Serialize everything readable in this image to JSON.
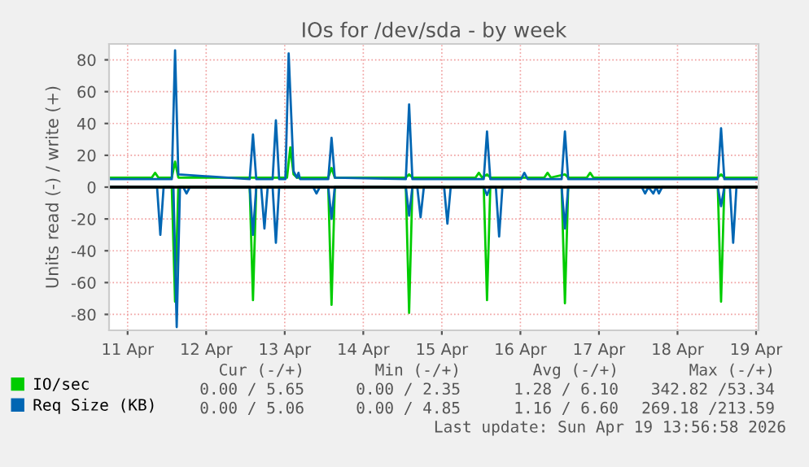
{
  "chart_data": {
    "type": "line",
    "title": "IOs for /dev/sda - by week",
    "ylabel": "Units read (-) / write (+)",
    "xlim": [
      "2026-04-11T06:20",
      "2026-04-19T12:45"
    ],
    "xticks": [
      {
        "value": "2026-04-11T12:00",
        "label": "11 Apr"
      },
      {
        "value": "2026-04-12T12:00",
        "label": "12 Apr"
      },
      {
        "value": "2026-04-13T12:00",
        "label": "13 Apr"
      },
      {
        "value": "2026-04-14T12:00",
        "label": "14 Apr"
      },
      {
        "value": "2026-04-15T12:00",
        "label": "15 Apr"
      },
      {
        "value": "2026-04-16T12:00",
        "label": "16 Apr"
      },
      {
        "value": "2026-04-17T12:00",
        "label": "17 Apr"
      },
      {
        "value": "2026-04-18T12:00",
        "label": "18 Apr"
      },
      {
        "value": "2026-04-19T12:00",
        "label": "19 Apr"
      }
    ],
    "ylim": [
      -90,
      90
    ],
    "yticks": [
      -80,
      -60,
      -40,
      -20,
      0,
      20,
      40,
      60,
      80
    ],
    "grid": true,
    "legend": "bottom",
    "ref_lines": [
      {
        "axis": "y",
        "value": 0,
        "color": "#000000"
      }
    ],
    "series": [
      {
        "color": "#00cc00",
        "x": [
          "2026-04-11T06:30",
          "2026-04-12T01:30",
          "2026-04-12T02:30",
          "2026-04-12T03:30",
          "2026-04-13T01:18",
          "2026-04-13T02:18",
          "2026-04-13T03:18",
          "2026-04-14T01:18",
          "2026-04-14T02:18",
          "2026-04-14T03:18",
          "2026-04-15T01:00",
          "2026-04-15T02:00",
          "2026-04-15T03:00",
          "2026-04-16T00:48",
          "2026-04-16T01:48",
          "2026-04-16T02:48",
          "2026-04-17T00:36",
          "2026-04-17T01:36",
          "2026-04-17T02:36",
          "2026-04-19T00:18",
          "2026-04-19T01:18",
          "2026-04-19T02:18",
          "2026-04-19T12:30"
        ],
        "values": [
          0,
          0,
          -72,
          0,
          0,
          -71,
          0,
          0,
          -74,
          0,
          0,
          -79,
          0,
          0,
          -71,
          0,
          0,
          -73,
          0,
          0,
          -72,
          0,
          0
        ]
      },
      {
        "color": "#0066b3",
        "x": [
          "2026-04-11T06:30",
          "2026-04-11T21:00",
          "2026-04-11T22:00",
          "2026-04-11T23:00",
          "2026-04-12T02:00",
          "2026-04-12T03:00",
          "2026-04-12T04:00",
          "2026-04-12T05:00",
          "2026-04-12T06:00",
          "2026-04-12T07:00",
          "2026-04-13T01:18",
          "2026-04-13T02:18",
          "2026-04-13T03:18",
          "2026-04-13T04:48",
          "2026-04-13T05:48",
          "2026-04-13T06:48",
          "2026-04-13T08:18",
          "2026-04-13T09:18",
          "2026-04-13T10:18",
          "2026-04-13T20:42",
          "2026-04-13T21:42",
          "2026-04-13T22:42",
          "2026-04-14T01:18",
          "2026-04-14T02:18",
          "2026-04-14T03:18",
          "2026-04-15T01:00",
          "2026-04-15T02:00",
          "2026-04-15T03:00",
          "2026-04-15T04:30",
          "2026-04-15T05:30",
          "2026-04-15T06:30",
          "2026-04-15T12:42",
          "2026-04-15T13:42",
          "2026-04-15T14:42",
          "2026-04-16T00:48",
          "2026-04-16T01:48",
          "2026-04-16T02:48",
          "2026-04-16T04:30",
          "2026-04-16T05:30",
          "2026-04-16T06:30",
          "2026-04-17T00:36",
          "2026-04-17T01:36",
          "2026-04-17T02:36",
          "2026-04-18T01:06",
          "2026-04-18T02:06",
          "2026-04-18T03:06",
          "2026-04-18T04:36",
          "2026-04-18T05:30",
          "2026-04-18T06:18",
          "2026-04-18T07:18",
          "2026-04-19T00:18",
          "2026-04-19T01:18",
          "2026-04-19T02:18",
          "2026-04-19T04:00",
          "2026-04-19T05:00",
          "2026-04-19T06:00",
          "2026-04-19T12:30"
        ],
        "values": [
          0,
          0,
          -30,
          0,
          0,
          -88,
          0,
          0,
          -4,
          0,
          0,
          -30,
          0,
          0,
          -26,
          0,
          0,
          -35,
          0,
          0,
          -4,
          0,
          0,
          -20,
          0,
          0,
          -18,
          0,
          0,
          -19,
          0,
          0,
          -23,
          0,
          0,
          -5,
          0,
          0,
          -31,
          0,
          0,
          -26,
          0,
          0,
          -4,
          0,
          -4,
          0,
          -4,
          0,
          0,
          -12,
          0,
          0,
          -35,
          0,
          0
        ]
      },
      {
        "name": "IO/sec",
        "color": "#00cc00",
        "x": [
          "2026-04-11T06:30",
          "2026-04-11T19:24",
          "2026-04-11T20:24",
          "2026-04-11T21:24",
          "2026-04-12T01:30",
          "2026-04-12T02:30",
          "2026-04-12T03:30",
          "2026-04-13T12:42",
          "2026-04-13T13:42",
          "2026-04-13T14:42",
          "2026-04-13T15:42",
          "2026-04-14T01:18",
          "2026-04-14T02:18",
          "2026-04-14T03:18",
          "2026-04-15T01:00",
          "2026-04-15T02:00",
          "2026-04-15T03:00",
          "2026-04-15T22:18",
          "2026-04-15T23:18",
          "2026-04-16T00:18",
          "2026-04-16T01:48",
          "2026-04-16T02:48",
          "2026-04-16T19:18",
          "2026-04-16T20:18",
          "2026-04-16T21:18",
          "2026-04-17T01:36",
          "2026-04-17T02:36",
          "2026-04-17T08:18",
          "2026-04-17T09:18",
          "2026-04-17T10:18",
          "2026-04-19T00:18",
          "2026-04-19T01:18",
          "2026-04-19T02:18",
          "2026-04-19T12:30"
        ],
        "values": [
          6,
          6,
          9,
          6,
          6,
          16,
          6,
          6,
          25,
          8,
          6,
          6,
          12,
          6,
          6,
          8,
          6,
          6,
          9,
          6,
          8,
          6,
          6,
          9,
          6,
          8,
          6,
          6,
          9,
          6,
          6,
          8,
          6,
          6
        ]
      },
      {
        "name": "Req Size (KB)",
        "color": "#0066b3",
        "x": [
          "2026-04-11T06:30",
          "2026-04-12T01:30",
          "2026-04-12T02:30",
          "2026-04-12T03:30",
          "2026-04-13T01:18",
          "2026-04-13T02:18",
          "2026-04-13T03:18",
          "2026-04-13T08:18",
          "2026-04-13T09:18",
          "2026-04-13T10:18",
          "2026-04-13T12:12",
          "2026-04-13T13:12",
          "2026-04-13T14:42",
          "2026-04-13T15:42",
          "2026-04-13T16:12",
          "2026-04-13T16:42",
          "2026-04-14T01:18",
          "2026-04-14T02:18",
          "2026-04-14T03:18",
          "2026-04-15T01:00",
          "2026-04-15T02:00",
          "2026-04-15T03:00",
          "2026-04-16T00:48",
          "2026-04-16T01:48",
          "2026-04-16T02:48",
          "2026-04-16T12:12",
          "2026-04-16T13:12",
          "2026-04-16T14:12",
          "2026-04-17T00:36",
          "2026-04-17T01:36",
          "2026-04-17T02:36",
          "2026-04-19T00:18",
          "2026-04-19T01:18",
          "2026-04-19T02:18",
          "2026-04-19T12:30"
        ],
        "values": [
          5,
          5,
          86,
          8,
          5,
          33,
          5,
          5,
          42,
          5,
          5,
          84,
          10,
          6,
          9,
          5,
          5,
          31,
          6,
          5,
          52,
          5,
          5,
          35,
          5,
          5,
          9,
          5,
          5,
          35,
          5,
          5,
          37,
          5,
          5
        ]
      }
    ],
    "annotations": [
      "Cur (-/+)",
      "Min (-/+)",
      "Avg (-/+)",
      "Max (-/+)",
      "0.00 / 5.65",
      "0.00 / 2.35",
      "1.28 / 6.10",
      "342.82 /53.34",
      "0.00 / 5.06",
      "0.00 / 4.85",
      "1.16 / 6.60",
      "269.18 /213.59",
      "Last update: Sun Apr 19 13:56:58 2026"
    ]
  }
}
